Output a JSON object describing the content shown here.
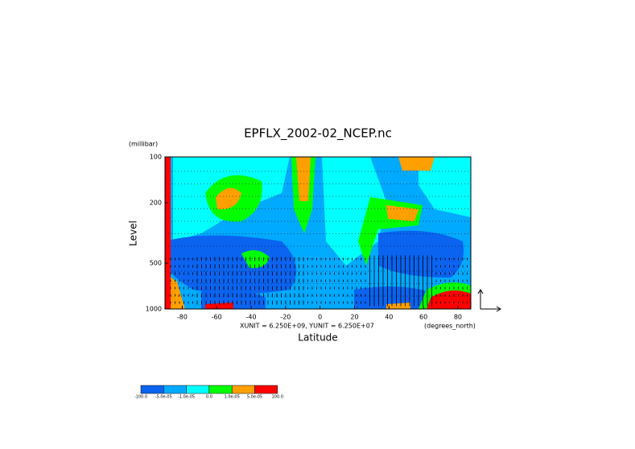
{
  "chart_data": {
    "type": "contour",
    "title": "EPFLX_2002-02_NCEP.nc",
    "x_label": "Latitude",
    "x_unit": "(degrees_north)",
    "y_label": "Level",
    "y_unit": "(millibar)",
    "note": "XUNIT = 6.250E+09, YUNIT = 6.250E+07",
    "xlim": [
      -90,
      87.5
    ],
    "xticks": [
      -80,
      -60,
      -40,
      -20,
      0,
      20,
      40,
      60,
      80
    ],
    "ylim": [
      1000,
      100
    ],
    "yticks": [
      100,
      200,
      500,
      1000
    ],
    "log_y": true,
    "colorbar": {
      "levels": [
        {
          "value": -100,
          "label": "-100.0"
        },
        {
          "value": -5e-05,
          "label": "-5.0e-05"
        },
        {
          "value": -1e-05,
          "label": "-1.0e-05"
        },
        {
          "value": 0,
          "label": "0.0"
        },
        {
          "value": 1e-05,
          "label": "1.0e-05"
        },
        {
          "value": 5e-05,
          "label": "5.0e-05"
        },
        {
          "value": 100,
          "label": "100.0"
        }
      ],
      "colors": [
        "#0a64f0",
        "#00aaff",
        "#00ffff",
        "#00ff00",
        "#ffa000",
        "#ff0000"
      ]
    }
  }
}
